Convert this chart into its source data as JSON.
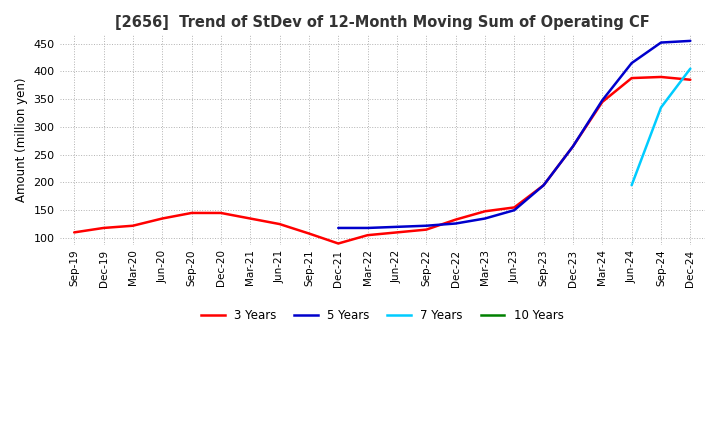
{
  "title": "[2656]  Trend of StDev of 12-Month Moving Sum of Operating CF",
  "ylabel": "Amount (million yen)",
  "ylim": [
    88,
    465
  ],
  "yticks": [
    100,
    150,
    200,
    250,
    300,
    350,
    400,
    450
  ],
  "legend_labels": [
    "3 Years",
    "5 Years",
    "7 Years",
    "10 Years"
  ],
  "legend_colors": [
    "#ff0000",
    "#0000cc",
    "#00ccff",
    "#008000"
  ],
  "x_labels": [
    "Sep-19",
    "Dec-19",
    "Mar-20",
    "Jun-20",
    "Sep-20",
    "Dec-20",
    "Mar-21",
    "Jun-21",
    "Sep-21",
    "Dec-21",
    "Mar-22",
    "Jun-22",
    "Sep-22",
    "Dec-22",
    "Mar-23",
    "Jun-23",
    "Sep-23",
    "Dec-23",
    "Mar-24",
    "Jun-24",
    "Sep-24",
    "Dec-24"
  ],
  "series_3y": [
    110,
    118,
    122,
    135,
    145,
    145,
    135,
    125,
    108,
    90,
    105,
    110,
    115,
    133,
    148,
    155,
    195,
    265,
    345,
    388,
    390,
    385
  ],
  "series_5y": [
    null,
    null,
    null,
    null,
    null,
    null,
    null,
    null,
    null,
    118,
    118,
    120,
    122,
    126,
    135,
    150,
    195,
    265,
    348,
    415,
    452,
    455
  ],
  "series_7y": [
    null,
    null,
    null,
    null,
    null,
    null,
    null,
    null,
    null,
    null,
    null,
    null,
    null,
    null,
    null,
    null,
    null,
    null,
    null,
    195,
    335,
    405
  ],
  "series_10y": [
    null,
    null,
    null,
    null,
    null,
    null,
    null,
    null,
    null,
    null,
    null,
    null,
    null,
    null,
    null,
    null,
    null,
    null,
    null,
    null,
    null,
    null
  ],
  "background_color": "#ffffff",
  "grid_color": "#aaaaaa"
}
